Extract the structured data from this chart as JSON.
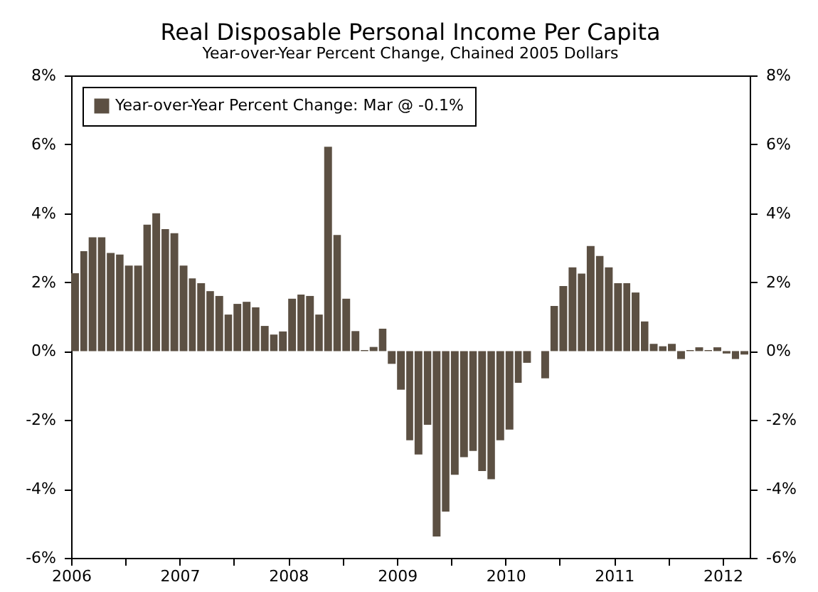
{
  "chart_data": {
    "type": "bar",
    "title": "Real Disposable Personal Income Per Capita",
    "subtitle": "Year-over-Year Percent Change, Chained 2005 Dollars",
    "x": [
      "2006-01",
      "2006-02",
      "2006-03",
      "2006-04",
      "2006-05",
      "2006-06",
      "2006-07",
      "2006-08",
      "2006-09",
      "2006-10",
      "2006-11",
      "2006-12",
      "2007-01",
      "2007-02",
      "2007-03",
      "2007-04",
      "2007-05",
      "2007-06",
      "2007-07",
      "2007-08",
      "2007-09",
      "2007-10",
      "2007-11",
      "2007-12",
      "2008-01",
      "2008-02",
      "2008-03",
      "2008-04",
      "2008-05",
      "2008-06",
      "2008-07",
      "2008-08",
      "2008-09",
      "2008-10",
      "2008-11",
      "2008-12",
      "2009-01",
      "2009-02",
      "2009-03",
      "2009-04",
      "2009-05",
      "2009-06",
      "2009-07",
      "2009-08",
      "2009-09",
      "2009-10",
      "2009-11",
      "2009-12",
      "2010-01",
      "2010-02",
      "2010-03",
      "2010-04",
      "2010-05",
      "2010-06",
      "2010-07",
      "2010-08",
      "2010-09",
      "2010-10",
      "2010-11",
      "2010-12",
      "2011-01",
      "2011-02",
      "2011-03",
      "2011-04",
      "2011-05",
      "2011-06",
      "2011-07",
      "2011-08",
      "2011-09",
      "2011-10",
      "2011-11",
      "2011-12",
      "2012-01",
      "2012-02",
      "2012-03"
    ],
    "series": [
      {
        "name": "Year-over-Year Percent Change: Mar @ -0.1%",
        "color": "#5c5043",
        "values": [
          2.26,
          2.9,
          3.3,
          3.3,
          2.85,
          2.8,
          2.48,
          2.48,
          3.67,
          4.0,
          3.54,
          3.42,
          2.48,
          2.11,
          1.97,
          1.74,
          1.6,
          1.06,
          1.37,
          1.43,
          1.27,
          0.73,
          0.48,
          0.57,
          1.52,
          1.64,
          1.6,
          1.06,
          5.93,
          3.37,
          1.52,
          0.58,
          0.03,
          0.12,
          0.65,
          -0.37,
          -1.12,
          -2.59,
          -3.0,
          -2.14,
          -5.38,
          -4.66,
          -3.59,
          -3.08,
          -2.9,
          -3.48,
          -3.72,
          -2.59,
          -2.28,
          -0.92,
          -0.34,
          0.0,
          -0.79,
          1.31,
          1.89,
          2.43,
          2.25,
          3.05,
          2.76,
          2.43,
          1.97,
          1.97,
          1.7,
          0.86,
          0.21,
          0.14,
          0.21,
          -0.23,
          0.03,
          0.11,
          0.03,
          0.11,
          -0.07,
          -0.23,
          -0.1
        ]
      }
    ],
    "xlim": [
      "2006-01",
      "2012-04"
    ],
    "xticks": [
      "2006",
      {
        "value": "2006-07",
        "label": null
      },
      "2007",
      {
        "value": "2007-07",
        "label": null
      },
      "2008",
      {
        "value": "2008-07",
        "label": null
      },
      "2009",
      {
        "value": "2009-07",
        "label": null
      },
      "2010",
      {
        "value": "2010-07",
        "label": null
      },
      "2011",
      {
        "value": "2011-07",
        "label": null
      },
      "2012"
    ],
    "ylim": [
      -6,
      8
    ],
    "yticks": [
      {
        "value": -6,
        "label": "-6%"
      },
      {
        "value": -4,
        "label": "-4%"
      },
      {
        "value": -2,
        "label": "-2%"
      },
      {
        "value": 0,
        "label": "0%"
      },
      {
        "value": 2,
        "label": "2%"
      },
      {
        "value": 4,
        "label": "4%"
      },
      {
        "value": 6,
        "label": "6%"
      },
      {
        "value": 8,
        "label": "8%"
      }
    ],
    "y2lim": [
      -6,
      8
    ],
    "y2ticks": [
      {
        "value": -6,
        "label": "-6%"
      },
      {
        "value": -4,
        "label": "-4%"
      },
      {
        "value": -2,
        "label": "-2%"
      },
      {
        "value": 0,
        "label": "0%"
      },
      {
        "value": 2,
        "label": "2%"
      },
      {
        "value": 4,
        "label": "4%"
      },
      {
        "value": 6,
        "label": "6%"
      },
      {
        "value": 8,
        "label": "8%"
      }
    ],
    "legend": "top left",
    "grid": false
  }
}
